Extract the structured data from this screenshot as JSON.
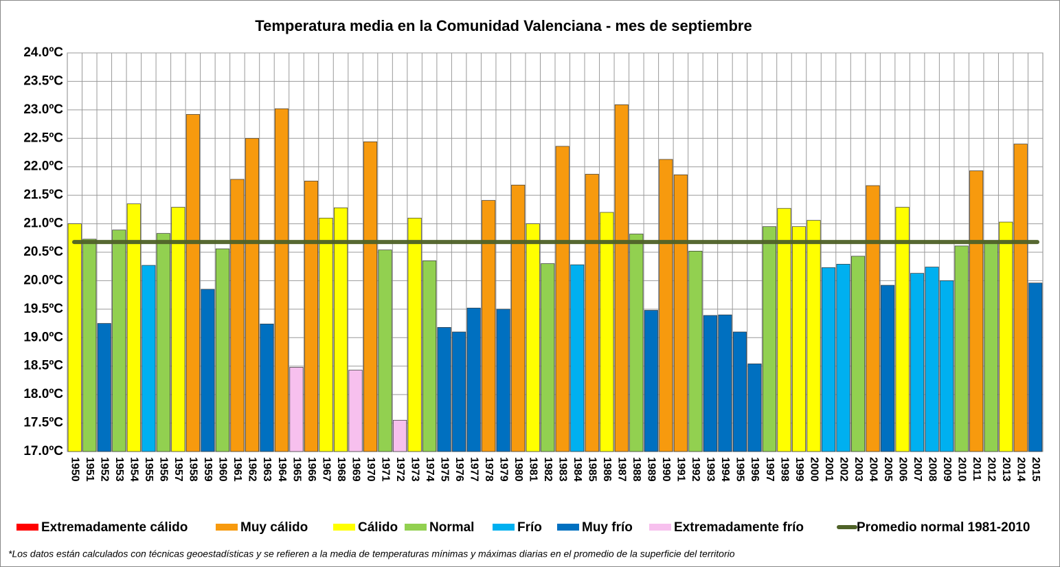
{
  "chart_data": {
    "type": "bar",
    "title": "Temperatura  media  en  la  Comunidad  Valenciana  -  mes  de  septiembre",
    "footnote": "*Los datos están calculados con técnicas geoestadísticas y se refieren a la media de temperaturas mínimas y máximas diarias en el promedio de la superficie del territorio",
    "categories": [
      "1950",
      "1951",
      "1952",
      "1953",
      "1954",
      "1955",
      "1956",
      "1957",
      "1958",
      "1959",
      "1960",
      "1961",
      "1962",
      "1963",
      "1964",
      "1965",
      "1966",
      "1967",
      "1968",
      "1969",
      "1970",
      "1971",
      "1972",
      "1973",
      "1974",
      "1975",
      "1976",
      "1977",
      "1978",
      "1979",
      "1980",
      "1981",
      "1982",
      "1983",
      "1984",
      "1985",
      "1986",
      "1987",
      "1988",
      "1989",
      "1990",
      "1991",
      "1992",
      "1993",
      "1994",
      "1995",
      "1996",
      "1997",
      "1998",
      "1999",
      "2000",
      "2001",
      "2002",
      "2003",
      "2004",
      "2005",
      "2006",
      "2007",
      "2008",
      "2009",
      "2010",
      "2011",
      "2012",
      "2013",
      "2014",
      "2015"
    ],
    "values": [
      21.0,
      20.73,
      19.25,
      20.89,
      21.35,
      20.27,
      20.83,
      21.29,
      22.92,
      19.85,
      20.56,
      21.78,
      22.5,
      19.24,
      23.02,
      18.48,
      21.75,
      21.1,
      21.28,
      18.43,
      22.44,
      20.54,
      17.55,
      21.1,
      20.35,
      19.18,
      19.1,
      19.52,
      21.41,
      19.5,
      21.68,
      21.0,
      20.3,
      22.36,
      20.28,
      21.87,
      21.2,
      23.09,
      20.82,
      19.48,
      22.13,
      21.86,
      20.52,
      19.39,
      19.4,
      19.1,
      18.54,
      20.95,
      21.27,
      20.95,
      21.06,
      20.23,
      20.29,
      20.43,
      21.67,
      19.92,
      21.29,
      20.13,
      20.24,
      20.0,
      20.61,
      21.93,
      20.7,
      21.03,
      22.4,
      19.96
    ],
    "colors": [
      "#ffff00",
      "#92d050",
      "#0070c0",
      "#92d050",
      "#ffff00",
      "#00b0f0",
      "#92d050",
      "#ffff00",
      "#f79a0e",
      "#0070c0",
      "#92d050",
      "#f79a0e",
      "#f79a0e",
      "#0070c0",
      "#f79a0e",
      "#f7c0ee",
      "#f79a0e",
      "#ffff00",
      "#ffff00",
      "#f7c0ee",
      "#f79a0e",
      "#92d050",
      "#f7c0ee",
      "#ffff00",
      "#92d050",
      "#0070c0",
      "#0070c0",
      "#0070c0",
      "#f79a0e",
      "#0070c0",
      "#f79a0e",
      "#ffff00",
      "#92d050",
      "#f79a0e",
      "#00b0f0",
      "#f79a0e",
      "#ffff00",
      "#f79a0e",
      "#92d050",
      "#0070c0",
      "#f79a0e",
      "#f79a0e",
      "#92d050",
      "#0070c0",
      "#0070c0",
      "#0070c0",
      "#0070c0",
      "#92d050",
      "#ffff00",
      "#ffff00",
      "#ffff00",
      "#00b0f0",
      "#00b0f0",
      "#92d050",
      "#f79a0e",
      "#0070c0",
      "#ffff00",
      "#00b0f0",
      "#00b0f0",
      "#00b0f0",
      "#92d050",
      "#f79a0e",
      "#92d050",
      "#ffff00",
      "#f79a0e",
      "#0070c0"
    ],
    "legend": [
      {
        "name": "Extremadamente cálido",
        "color": "#ff0000"
      },
      {
        "name": "Muy cálido",
        "color": "#f79a0e"
      },
      {
        "name": "Cálido",
        "color": "#ffff00"
      },
      {
        "name": "Normal",
        "color": "#92d050"
      },
      {
        "name": "Frío",
        "color": "#00b0f0"
      },
      {
        "name": "Muy frío",
        "color": "#0070c0"
      },
      {
        "name": "Extremadamente frío",
        "color": "#f7c0ee"
      }
    ],
    "reference_line": {
      "name": "Promedio normal 1981-2010",
      "value": 20.68,
      "color": "#4f6228"
    },
    "ylim": [
      17.0,
      24.0
    ],
    "yticks": [
      {
        "value": 17.0,
        "label": "17.0ºC"
      },
      {
        "value": 17.5,
        "label": "17.5ºC"
      },
      {
        "value": 18.0,
        "label": "18.0ºC"
      },
      {
        "value": 18.5,
        "label": "18.5ºC"
      },
      {
        "value": 19.0,
        "label": "19.0ºC"
      },
      {
        "value": 19.5,
        "label": "19.5ºC"
      },
      {
        "value": 20.0,
        "label": "20.0ºC"
      },
      {
        "value": 20.5,
        "label": "20.5ºC"
      },
      {
        "value": 21.0,
        "label": "21.0ºC"
      },
      {
        "value": 21.5,
        "label": "21.5ºC"
      },
      {
        "value": 22.0,
        "label": "22.0ºC"
      },
      {
        "value": 22.5,
        "label": "22.5ºC"
      },
      {
        "value": 23.0,
        "label": "23.0ºC"
      },
      {
        "value": 23.5,
        "label": "23.5ºC"
      },
      {
        "value": 24.0,
        "label": "24.0ºC"
      }
    ],
    "grid": true
  }
}
